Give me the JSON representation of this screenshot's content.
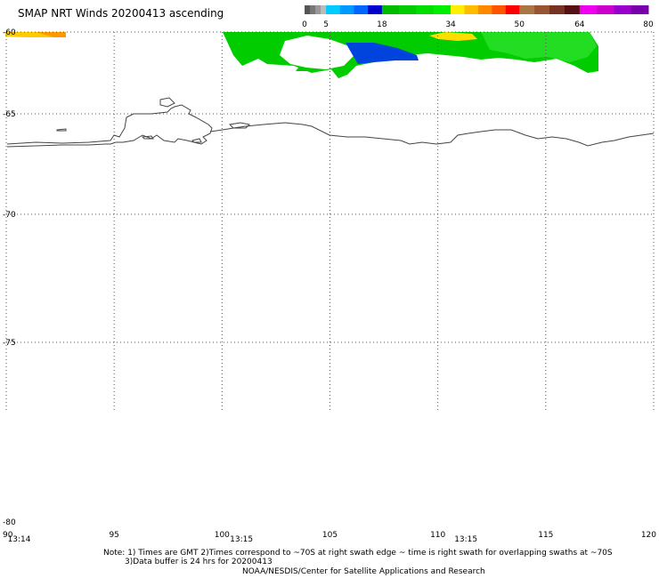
{
  "title": "SMAP NRT Winds 20200413 ascending",
  "colorbar": {
    "ticks": [
      "0",
      "5",
      "18",
      "34",
      "50",
      "64",
      "80"
    ],
    "segments": [
      {
        "from": 0,
        "to": 5,
        "colors": [
          "#555555",
          "#777777",
          "#999999",
          "#bbbbbb"
        ]
      },
      {
        "from": 5,
        "to": 18,
        "colors": [
          "#00ccff",
          "#0099ff",
          "#0066ff",
          "#0000cc"
        ]
      },
      {
        "from": 18,
        "to": 34,
        "colors": [
          "#00bb00",
          "#00cc00",
          "#00dd00",
          "#00ee00"
        ]
      },
      {
        "from": 34,
        "to": 50,
        "colors": [
          "#ffee00",
          "#ffbb00",
          "#ff8800",
          "#ff5500",
          "#ff0000"
        ]
      },
      {
        "from": 50,
        "to": 64,
        "colors": [
          "#aa7744",
          "#995533",
          "#773322",
          "#551111"
        ]
      },
      {
        "from": 64,
        "to": 80,
        "colors": [
          "#ee00ee",
          "#cc00cc",
          "#9900cc",
          "#7700aa"
        ]
      }
    ]
  },
  "map": {
    "lon_range": [
      90,
      120
    ],
    "lat_range": [
      -80,
      -60
    ],
    "lon_ticks": [
      "90",
      "95",
      "100",
      "105",
      "110",
      "115",
      "120"
    ],
    "lat_ticks": [
      "-60",
      "-65",
      "-70",
      "-75",
      "-80"
    ],
    "time_labels": [
      {
        "lon": 90.6,
        "text": "13:14"
      },
      {
        "lon": 100.9,
        "text": "13:15"
      },
      {
        "lon": 111.3,
        "text": "13:15"
      }
    ]
  },
  "notes": {
    "line1": "Note: 1) Times are GMT 2)Times correspond to ~70S at right swath edge ~ time is right swath for overlapping swaths at ~70S",
    "line2": "3)Data buffer is 24 hrs for 20200413",
    "line3": "NOAA/NESDIS/Center for Satellite Applications and Research"
  },
  "colors": {
    "coast": "#444444",
    "grid": "#555555",
    "wind_green": "#00cc00",
    "wind_blue": "#0044dd",
    "wind_yellow": "#ffcc00"
  }
}
